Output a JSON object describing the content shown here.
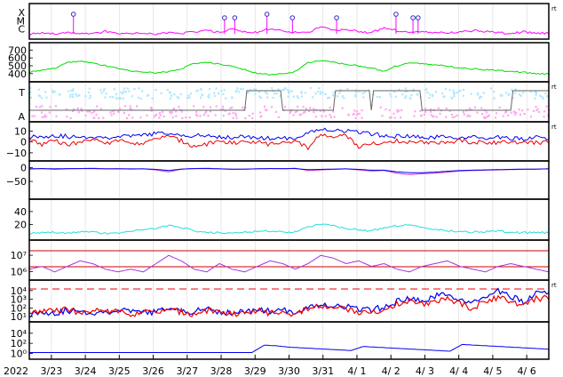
{
  "chart_data": [
    {
      "type": "line",
      "panel": "event-flags",
      "ylabels": [
        "X",
        "M",
        "C"
      ],
      "right_tag": "rt",
      "series": [
        {
          "color": "#ff00ff",
          "values": [
            0.2,
            0.3,
            0.25,
            0.4,
            0.3,
            0.2,
            0.6,
            0.3,
            0.25,
            0.3,
            0.2,
            0.35,
            0.3,
            0.5,
            0.8,
            0.4,
            0.9,
            0.5,
            0.4,
            1.0,
            0.6,
            0.5,
            0.4,
            1.2,
            0.7,
            0.9,
            0.6,
            0.4,
            1.1,
            0.7,
            0.5,
            0.6,
            0.4,
            0.35,
            0.5,
            0.7,
            0.6,
            0.4,
            0.3,
            0.5,
            0.35,
            0.3
          ]
        }
      ],
      "markers_x": [
        1.15,
        5.6,
        5.9,
        6.85,
        7.6,
        8.9,
        10.65,
        11.15,
        11.3
      ]
    },
    {
      "type": "line",
      "panel": "speed",
      "yticks": [
        "700",
        "600",
        "500",
        "400"
      ],
      "ylim": [
        330,
        760
      ],
      "series": [
        {
          "color": "#00dd00",
          "values": [
            420,
            440,
            470,
            540,
            560,
            530,
            500,
            470,
            430,
            420,
            410,
            420,
            460,
            530,
            545,
            520,
            490,
            450,
            400,
            390,
            395,
            430,
            540,
            560,
            545,
            520,
            500,
            470,
            430,
            500,
            540,
            530,
            510,
            495,
            470,
            460,
            450,
            440,
            430,
            415,
            400,
            395
          ]
        }
      ]
    },
    {
      "type": "scatter",
      "panel": "temperature-alpha",
      "ylabels": [
        "T",
        "A"
      ],
      "right_tag": "rt",
      "series": [
        {
          "name": "T",
          "color": "#aee8ff"
        },
        {
          "name": "A",
          "color": "#ffa8ee"
        },
        {
          "color": "#666666",
          "values": [
            0,
            0,
            0,
            0,
            0,
            0,
            0,
            0,
            0,
            0,
            0,
            0,
            0,
            0,
            0,
            0,
            0,
            0,
            1,
            1,
            0,
            0,
            0,
            0,
            0,
            1,
            1,
            0,
            1,
            1,
            1,
            0,
            0,
            0,
            0,
            0,
            0,
            0,
            0,
            1,
            1,
            1
          ]
        }
      ]
    },
    {
      "type": "line",
      "panel": "field-components",
      "yticks": [
        "10",
        "0",
        "−10"
      ],
      "ylim": [
        -15,
        16
      ],
      "right_tag": "rt",
      "series": [
        {
          "color": "#0000ee",
          "values": [
            5,
            5,
            6,
            5,
            4,
            5,
            4,
            5,
            5,
            6,
            8,
            7,
            6,
            6,
            5,
            5,
            4,
            5,
            4,
            3,
            3,
            4,
            8,
            12,
            11,
            10,
            9,
            7,
            6,
            5,
            5,
            4,
            4,
            5,
            4,
            4,
            3,
            4,
            3,
            3,
            4,
            3
          ]
        },
        {
          "color": "#ee0000",
          "values": [
            2,
            -2,
            1,
            -3,
            0,
            2,
            -1,
            1,
            0,
            -2,
            3,
            5,
            1,
            -4,
            -2,
            0,
            -1,
            1,
            0,
            -2,
            0,
            1,
            -6,
            7,
            4,
            6,
            -4,
            -2,
            0,
            1,
            -1,
            0,
            0,
            -1,
            1,
            0,
            0,
            -1,
            0,
            0,
            -1,
            0
          ]
        }
      ]
    },
    {
      "type": "line",
      "panel": "bz-index",
      "yticks": [
        "0",
        "−50"
      ],
      "ylim": [
        -105,
        15
      ],
      "series": [
        {
          "color": "#cc33cc",
          "values": [
            -5,
            -3,
            -6,
            -4,
            -3,
            -2,
            -4,
            -3,
            -5,
            -4,
            -8,
            -15,
            -5,
            -3,
            -2,
            -4,
            -6,
            -5,
            -4,
            -3,
            -4,
            -2,
            -10,
            -8,
            -6,
            -4,
            -8,
            -12,
            -10,
            -20,
            -25,
            -22,
            -20,
            -16,
            -12,
            -10,
            -9,
            -8,
            -7,
            -6,
            -5,
            -4
          ]
        },
        {
          "color": "#0000ee",
          "values": [
            -4,
            -3,
            -4,
            -3,
            -3,
            -3,
            -4,
            -4,
            -4,
            -4,
            -6,
            -10,
            -5,
            -3,
            -3,
            -4,
            -5,
            -5,
            -4,
            -3,
            -3,
            -3,
            -7,
            -6,
            -5,
            -4,
            -6,
            -9,
            -9,
            -15,
            -18,
            -18,
            -16,
            -13,
            -10,
            -9,
            -8,
            -7,
            -6,
            -5,
            -5,
            -4
          ]
        }
      ]
    },
    {
      "type": "line",
      "panel": "density",
      "yticks": [
        "40",
        "20"
      ],
      "ylim": [
        0,
        55
      ],
      "series": [
        {
          "color": "#22dddd",
          "values": [
            6,
            7,
            8,
            6,
            9,
            8,
            6,
            7,
            9,
            12,
            14,
            18,
            15,
            10,
            8,
            7,
            6,
            8,
            9,
            10,
            8,
            9,
            16,
            20,
            18,
            14,
            12,
            10,
            15,
            18,
            20,
            16,
            12,
            10,
            9,
            8,
            9,
            10,
            8,
            7,
            8,
            7
          ]
        }
      ]
    },
    {
      "type": "line",
      "panel": "flux-log",
      "yticks": [
        "10⁷",
        "10⁶"
      ],
      "series": [
        {
          "color": "#aa33dd",
          "values": [
            0.3,
            0.4,
            0.2,
            0.4,
            0.6,
            0.5,
            0.3,
            0.2,
            0.3,
            0.2,
            0.5,
            0.8,
            0.6,
            0.3,
            0.2,
            0.5,
            0.3,
            0.2,
            0.4,
            0.6,
            0.5,
            0.3,
            0.5,
            0.8,
            0.7,
            0.5,
            0.6,
            0.4,
            0.5,
            0.3,
            0.2,
            0.4,
            0.5,
            0.6,
            0.4,
            0.3,
            0.2,
            0.4,
            0.5,
            0.4,
            0.3,
            0.2
          ]
        }
      ]
    },
    {
      "type": "line",
      "panel": "particles-log",
      "yticks": [
        "10⁴",
        "10³",
        "10²",
        "10¹"
      ],
      "right_tag": "rt",
      "series": [
        {
          "color": "#0000ee",
          "values": [
            1.8,
            2.0,
            1.9,
            2.1,
            2.0,
            1.9,
            2.0,
            2.1,
            2.0,
            1.9,
            2.0,
            2.2,
            2.1,
            2.0,
            2.2,
            2.0,
            1.9,
            2.0,
            2.2,
            2.0,
            2.1,
            2.0,
            2.3,
            2.6,
            2.5,
            2.4,
            2.2,
            2.1,
            2.4,
            2.8,
            3.0,
            2.8,
            3.2,
            3.4,
            3.0,
            2.6,
            3.2,
            3.6,
            3.2,
            2.8,
            3.4,
            3.6
          ]
        },
        {
          "color": "#ee0000",
          "values": [
            1.8,
            2.1,
            2.0,
            2.2,
            1.9,
            2.0,
            2.1,
            2.0,
            1.8,
            2.0,
            1.9,
            2.1,
            2.0,
            1.8,
            2.1,
            1.9,
            1.8,
            2.0,
            2.1,
            1.9,
            2.0,
            1.8,
            2.2,
            2.4,
            2.3,
            2.2,
            2.0,
            1.9,
            2.2,
            2.6,
            2.8,
            2.6,
            2.9,
            3.0,
            2.6,
            2.3,
            2.9,
            3.1,
            2.8,
            2.6,
            3.0,
            3.1
          ]
        }
      ],
      "threshold": 4.0
    },
    {
      "type": "line",
      "panel": "electrons-log",
      "yticks": [
        "10⁴",
        "10²",
        "10⁰"
      ],
      "series": [
        {
          "color": "#0000ee",
          "values": [
            -0.3,
            -0.3,
            -0.3,
            -0.3,
            -0.3,
            -0.3,
            -0.3,
            -0.3,
            -0.3,
            -0.3,
            -0.3,
            -0.3,
            -0.3,
            -0.3,
            -0.3,
            -0.3,
            -0.3,
            -0.3,
            -0.3,
            0.8,
            0.7,
            0.5,
            0.4,
            0.3,
            0.2,
            0.1,
            0.0,
            0.6,
            0.5,
            0.4,
            0.3,
            0.2,
            0.1,
            0.0,
            -0.1,
            0.9,
            0.8,
            0.7,
            0.6,
            0.5,
            0.4,
            0.3,
            0.2
          ]
        }
      ]
    }
  ],
  "x_axis": {
    "year": "2022",
    "ticks": [
      "3/23",
      "3/24",
      "3/25",
      "3/26",
      "3/27",
      "3/28",
      "3/29",
      "3/30",
      "3/31",
      "4/ 1",
      "4/ 2",
      "4/ 3",
      "4/ 4",
      "4/ 5",
      "4/ 6"
    ]
  }
}
